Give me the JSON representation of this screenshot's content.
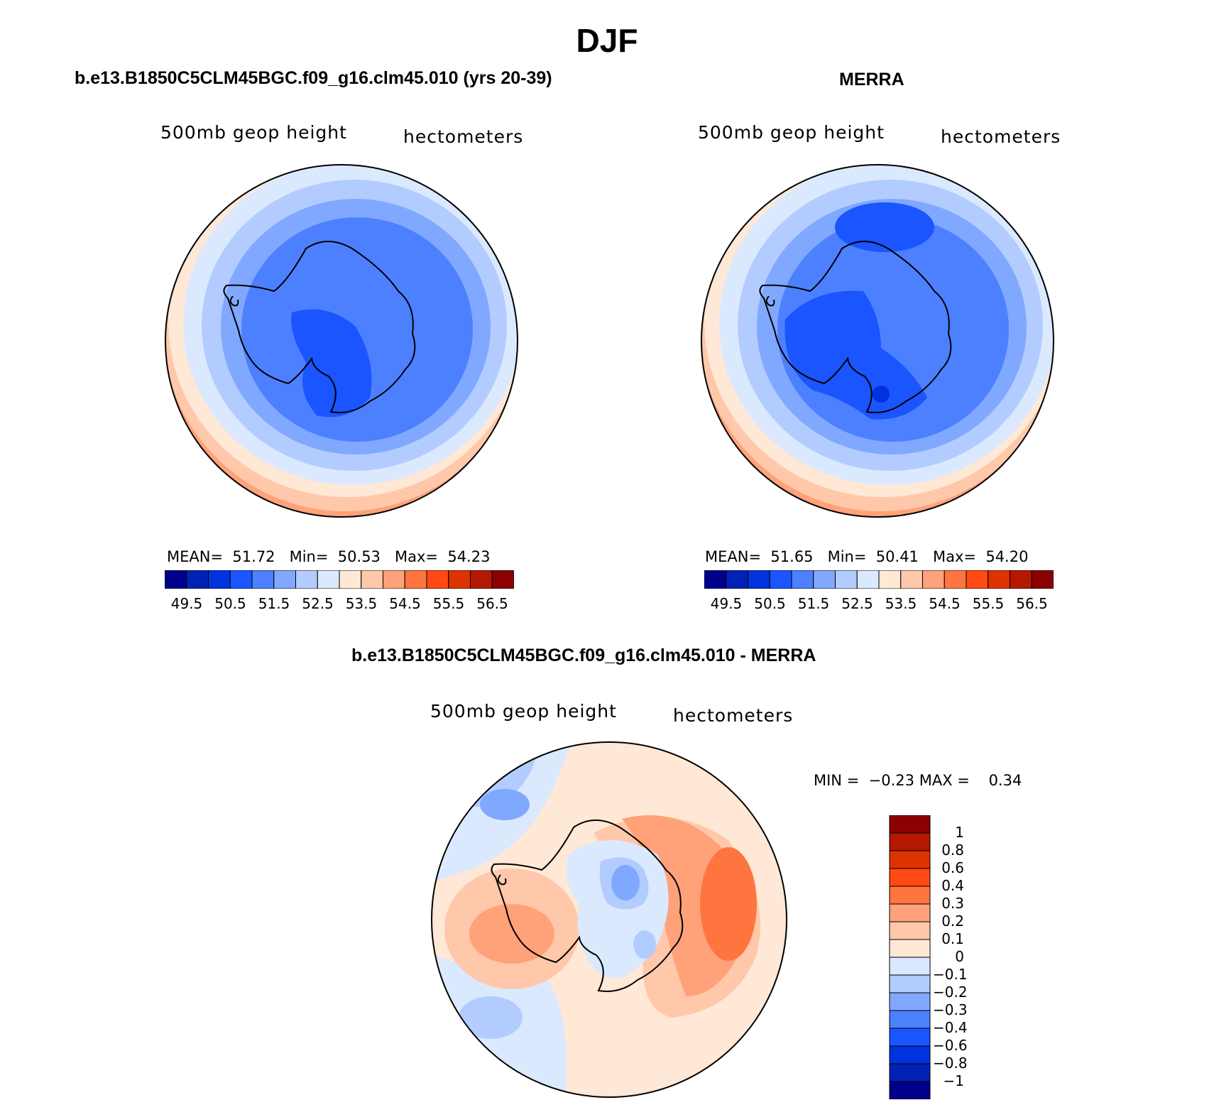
{
  "title": "DJF",
  "panels": {
    "model": {
      "title": "b.e13.B1850C5CLM45BGC.f09_g16.clm45.010 (yrs 20-39)",
      "left_label": "500mb geop height",
      "right_label": "hectometers",
      "stats": {
        "mean_label": "MEAN=",
        "mean": "51.72",
        "min_label": "Min=",
        "min": "50.53",
        "max_label": "Max=",
        "max": "54.23"
      }
    },
    "obs": {
      "title": "MERRA",
      "left_label": "500mb geop height",
      "right_label": "hectometers",
      "stats": {
        "mean_label": "MEAN=",
        "mean": "51.65",
        "min_label": "Min=",
        "min": "50.41",
        "max_label": "Max=",
        "max": "54.20"
      }
    },
    "diff": {
      "title": "b.e13.B1850C5CLM45BGC.f09_g16.clm45.010 - MERRA",
      "left_label": "500mb geop height",
      "right_label": "hectometers",
      "stats": {
        "min_label": "MIN =",
        "min": "−0.23",
        "max_label": "MAX =",
        "max": "0.34"
      }
    }
  },
  "colorbar_abs": {
    "colors": [
      "#00008b",
      "#0022b4",
      "#0033dd",
      "#1a55ff",
      "#4d80ff",
      "#80a8ff",
      "#b3ccff",
      "#dbe9ff",
      "#ffe8d5",
      "#ffc8aa",
      "#ffa27a",
      "#ff7540",
      "#ff4a14",
      "#dd3300",
      "#b41800",
      "#8b0000"
    ],
    "ticks": [
      "49.5",
      "50.5",
      "51.5",
      "52.5",
      "53.5",
      "54.5",
      "55.5",
      "56.5"
    ]
  },
  "colorbar_diff": {
    "colors": [
      "#8b0000",
      "#b41800",
      "#dd3300",
      "#ff4a14",
      "#ff7540",
      "#ffa27a",
      "#ffc8aa",
      "#ffe8d5",
      "#dbe9ff",
      "#b3ccff",
      "#80a8ff",
      "#4d80ff",
      "#1a55ff",
      "#0033dd",
      "#0022b4",
      "#00008b"
    ],
    "ticks": [
      "1",
      "0.8",
      "0.6",
      "0.4",
      "0.3",
      "0.2",
      "0.1",
      "0",
      "−0.1",
      "−0.2",
      "−0.3",
      "−0.4",
      "−0.6",
      "−0.8",
      "−1"
    ]
  }
}
